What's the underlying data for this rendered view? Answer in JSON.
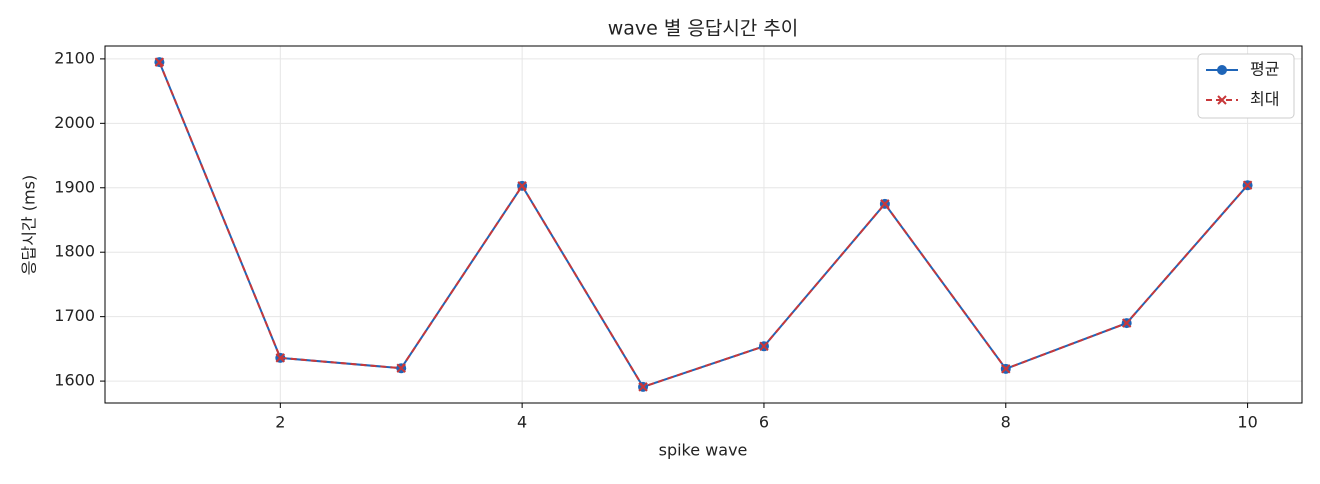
{
  "chart_data": {
    "type": "line",
    "title": "wave 별 응답시간 추이",
    "x_label": "spike wave",
    "y_label": "응답시간 (ms)",
    "x": [
      1,
      2,
      3,
      4,
      5,
      6,
      7,
      8,
      9,
      10
    ],
    "series": [
      {
        "name": "평균",
        "color": "#1f65b8",
        "marker": "circle",
        "dash": false,
        "values": [
          2095,
          1636,
          1620,
          1903,
          1591,
          1654,
          1875,
          1619,
          1690,
          1904
        ]
      },
      {
        "name": "최대",
        "color": "#c8383a",
        "marker": "x",
        "dash": true,
        "values": [
          2095,
          1636,
          1620,
          1903,
          1591,
          1654,
          1875,
          1619,
          1690,
          1904
        ]
      }
    ],
    "xlim": [
      0.55,
      10.45
    ],
    "xticks": [
      2,
      4,
      6,
      8,
      10
    ],
    "ylim": [
      1566,
      2120
    ],
    "yticks": [
      1600,
      1700,
      1800,
      1900,
      2000,
      2100
    ],
    "grid": true,
    "legend": "upper right"
  }
}
